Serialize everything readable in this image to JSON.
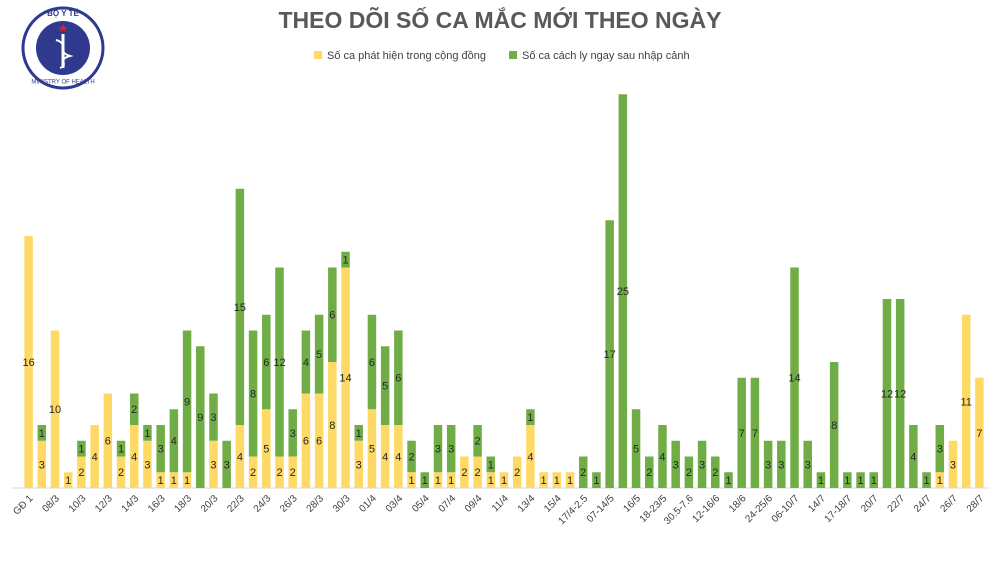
{
  "logo": {
    "top": "BỘ Y TẾ",
    "bottom": "MINISTRY OF HEALTH"
  },
  "chart_data": {
    "type": "bar",
    "stacked": true,
    "title": "THEO DÕI SỐ CA MẮC MỚI THEO NGÀY",
    "categories": [
      "GĐ 1",
      null,
      "08/3",
      null,
      "10/3",
      null,
      "12/3",
      null,
      "14/3",
      null,
      "16/3",
      null,
      "18/3",
      null,
      "20/3",
      null,
      "22/3",
      null,
      "24/3",
      null,
      "26/3",
      null,
      "28/3",
      null,
      "30/3",
      null,
      "01/4",
      null,
      "03/4",
      null,
      "05/4",
      null,
      "07/4",
      null,
      "09/4",
      null,
      "11/4",
      null,
      "13/4",
      null,
      "15/4",
      null,
      "17/4-2.5",
      null,
      "07-14/5",
      null,
      "16/5",
      null,
      "18-23/5",
      null,
      "30.5-7.6",
      null,
      "12-16/6",
      null,
      "18/6",
      null,
      "24-25/6",
      null,
      "06-10/7",
      null,
      "14/7",
      null,
      "17-18/7",
      null,
      "20/7",
      null,
      "22/7",
      null,
      "24/7",
      null,
      "26/7",
      null,
      "28/7"
    ],
    "series": [
      {
        "name": "Số ca phát hiện trong cộng đồng",
        "color": "#FFD966",
        "values": [
          16,
          3,
          10,
          1,
          2,
          4,
          6,
          2,
          4,
          3,
          1,
          1,
          1,
          null,
          3,
          null,
          4,
          2,
          5,
          2,
          2,
          6,
          6,
          8,
          14,
          3,
          5,
          4,
          4,
          1,
          null,
          1,
          1,
          2,
          2,
          1,
          1,
          2,
          4,
          1,
          1,
          1,
          null,
          null,
          null,
          null,
          null,
          null,
          null,
          null,
          null,
          null,
          null,
          null,
          null,
          null,
          null,
          null,
          null,
          null,
          null,
          null,
          null,
          null,
          null,
          null,
          null,
          null,
          null,
          1,
          3,
          11,
          7
        ]
      },
      {
        "name": "Số ca cách ly ngay sau nhập cảnh",
        "color": "#70AD47",
        "values": [
          null,
          1,
          null,
          null,
          1,
          null,
          null,
          1,
          2,
          1,
          3,
          4,
          9,
          9,
          3,
          3,
          15,
          8,
          6,
          12,
          3,
          4,
          5,
          6,
          1,
          1,
          6,
          5,
          6,
          2,
          1,
          3,
          3,
          null,
          2,
          1,
          null,
          null,
          1,
          null,
          null,
          null,
          2,
          1,
          17,
          25,
          5,
          2,
          4,
          3,
          2,
          3,
          2,
          1,
          7,
          7,
          3,
          3,
          14,
          3,
          1,
          8,
          1,
          1,
          1,
          12,
          12,
          4,
          1,
          3,
          null,
          null,
          null
        ]
      }
    ]
  }
}
